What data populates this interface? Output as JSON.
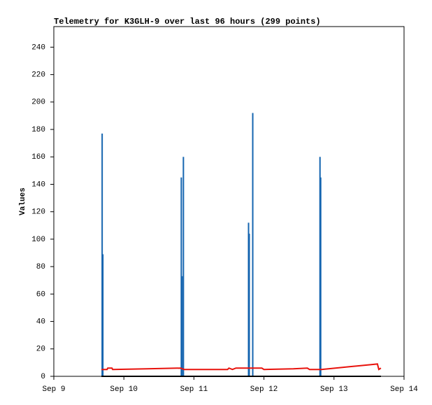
{
  "chart_data": {
    "type": "line",
    "title": "Telemetry for K3GLH-9 over last 96 hours (299 points)",
    "y_label": "Values",
    "xlim": [
      0,
      5
    ],
    "xticks": [
      {
        "value": 0,
        "label": "Sep 9"
      },
      {
        "value": 1,
        "label": "Sep 10"
      },
      {
        "value": 2,
        "label": "Sep 11"
      },
      {
        "value": 3,
        "label": "Sep 12"
      },
      {
        "value": 4,
        "label": "Sep 13"
      },
      {
        "value": 5,
        "label": "Sep 14"
      }
    ],
    "ylim": [
      0,
      255
    ],
    "yticks": [
      0,
      20,
      40,
      60,
      80,
      100,
      120,
      140,
      160,
      180,
      200,
      220,
      240
    ],
    "series": [
      {
        "type": "spike",
        "color": "#1565b0",
        "x": [
          0.69,
          0.7,
          1.82,
          1.83,
          1.85,
          2.78,
          2.79,
          2.84,
          3.8,
          3.81
        ],
        "values": [
          177,
          89,
          145,
          73,
          160,
          112,
          104,
          192,
          160,
          145
        ]
      },
      {
        "type": "line",
        "color": "#000000",
        "x": [
          0.68,
          4.67
        ],
        "values": [
          0,
          0
        ]
      },
      {
        "type": "line",
        "color": "#e8120c",
        "x": [
          0.68,
          0.76,
          0.77,
          0.83,
          0.84,
          1.33,
          1.81,
          1.86,
          2.48,
          2.5,
          2.55,
          2.6,
          2.97,
          3.0,
          3.42,
          3.62,
          3.65,
          3.82,
          4.22,
          4.52,
          4.62,
          4.64,
          4.67
        ],
        "values": [
          5,
          5,
          6,
          6,
          5,
          5.5,
          6,
          5,
          5,
          6,
          5,
          6,
          6,
          5,
          5.5,
          6,
          5,
          5,
          7,
          8.5,
          9,
          5,
          6
        ]
      }
    ]
  }
}
